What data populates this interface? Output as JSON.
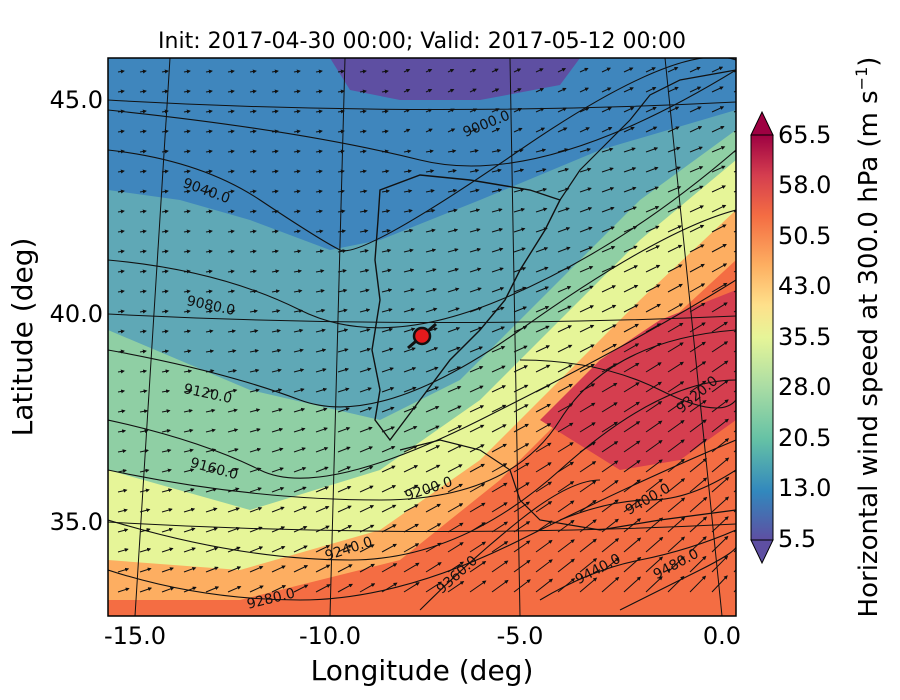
{
  "title": "Init: 2017-04-30 00:00; Valid: 2017-05-12 00:00",
  "xlabel": "Longitude (deg)",
  "ylabel": "Latitude (deg)",
  "colorbar": {
    "label": "Horizontal wind speed at 300.0 hPa (m s",
    "label_unit_tail": ")",
    "label_exponent": "−1",
    "ticks": [
      "5.5",
      "13.0",
      "20.5",
      "28.0",
      "35.5",
      "43.0",
      "50.5",
      "58.0",
      "65.5"
    ],
    "colors": [
      "#5e4fa2",
      "#3288bd",
      "#66c2a5",
      "#abdda4",
      "#e6f598",
      "#fee08b",
      "#fdae61",
      "#f46d43",
      "#d53e4f",
      "#9e0142"
    ]
  },
  "chart_data": {
    "type": "map",
    "variable": "Horizontal wind speed at 300.0 hPa (m s^-1)",
    "x_ticks": [
      "-15.0",
      "-10.0",
      "-5.0",
      "0.0"
    ],
    "y_ticks": [
      "45.0",
      "40.0",
      "35.0"
    ],
    "xlim": [
      -16,
      0.2
    ],
    "ylim": [
      32.8,
      46.2
    ],
    "geopotential_contour_labels": [
      "9000.0",
      "9040.0",
      "9080.0",
      "9120.0",
      "9160.0",
      "9200.0",
      "9240.0",
      "9280.0",
      "9320.0",
      "9360.0",
      "9400.0",
      "9440.0",
      "9480.0"
    ],
    "marker": {
      "lon": -7.6,
      "lat": 39.3
    },
    "colorbar_range": [
      5.5,
      65.5
    ]
  }
}
